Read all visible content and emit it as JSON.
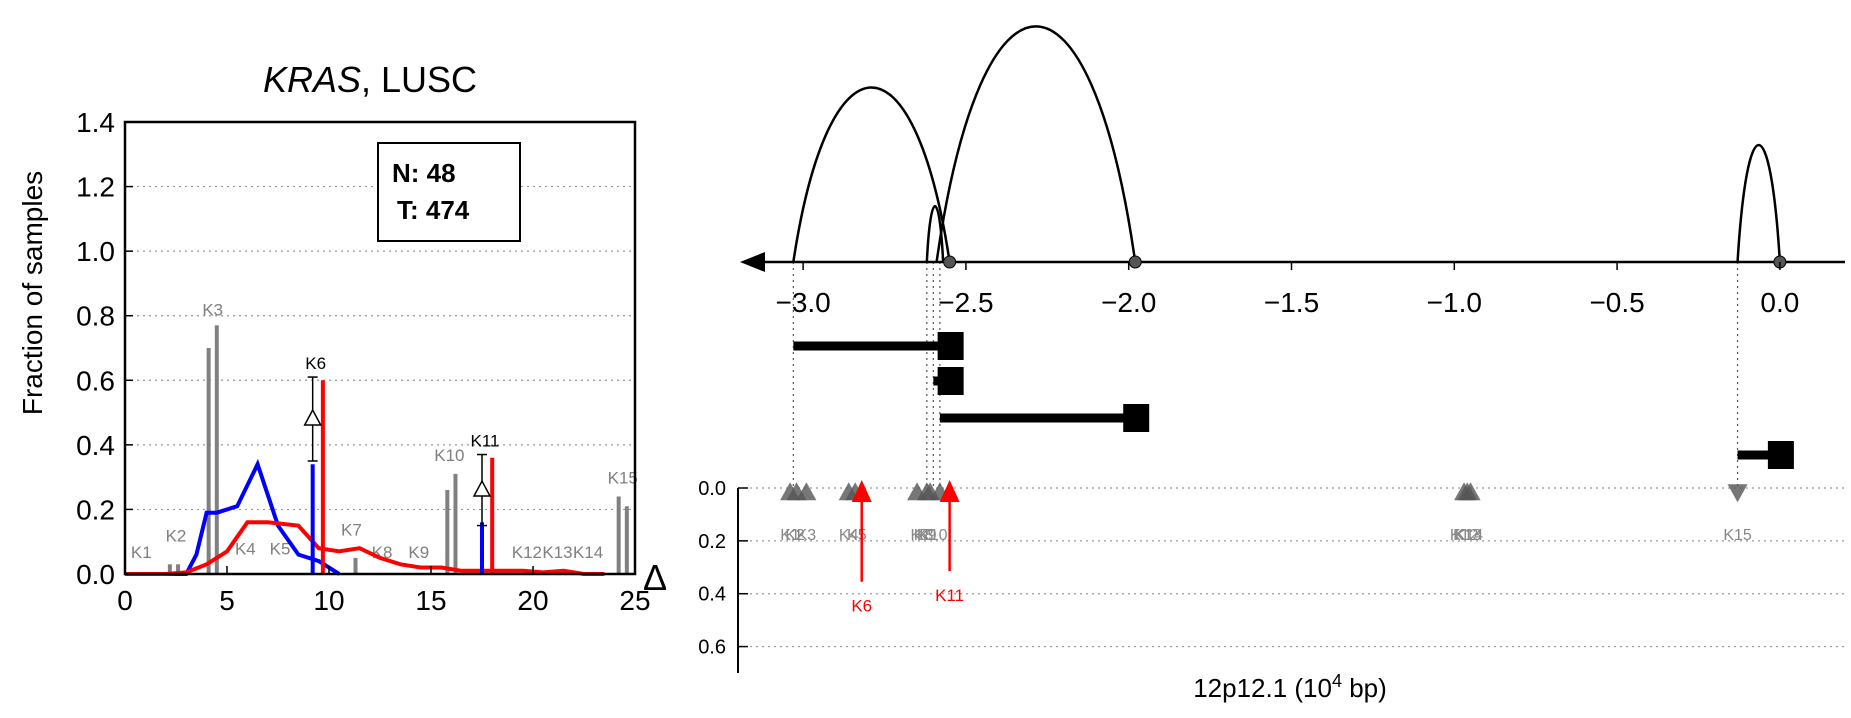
{
  "chart_data": [
    {
      "type": "line",
      "title_italic": "KRAS",
      "title_rest": ", LUSC",
      "ylabel": "Fraction of samples",
      "xlim": [
        0,
        25
      ],
      "ylim": [
        0,
        1.4
      ],
      "xticks": [
        "0",
        "5",
        "10",
        "15",
        "20",
        "25"
      ],
      "yticks": [
        "0.0",
        "0.2",
        "0.4",
        "0.6",
        "0.8",
        "1.0",
        "1.2",
        "1.4"
      ],
      "grid": "horizontal dotted",
      "legend": {
        "N": "N: 48",
        "T": "T: 474"
      },
      "colors": {
        "normal": "#0000ff",
        "tumor": "#ff0000",
        "marker": "#808080"
      },
      "series": [
        {
          "color": "#0000ff",
          "x": [
            0,
            1,
            2,
            3,
            3.5,
            4,
            4.5,
            5.5,
            6.5,
            7.5,
            8.5,
            9.5,
            10.5
          ],
          "values": [
            0,
            0,
            0,
            0,
            0.06,
            0.19,
            0.19,
            0.21,
            0.34,
            0.15,
            0.06,
            0.04,
            0
          ]
        },
        {
          "color": "#ff0000",
          "x": [
            0,
            1,
            2,
            3,
            4,
            5,
            6,
            7,
            8.5,
            9.5,
            10.5,
            11.5,
            12.5,
            13.5,
            14.5,
            15.5,
            16.5,
            17.5,
            18.5,
            19.5,
            20.5,
            21.5,
            22.5,
            23.5
          ],
          "values": [
            0,
            0,
            0,
            0.005,
            0.03,
            0.07,
            0.16,
            0.16,
            0.15,
            0.08,
            0.07,
            0.08,
            0.05,
            0.03,
            0.02,
            0.02,
            0.01,
            0.01,
            0.01,
            0.01,
            0.005,
            0.01,
            0,
            0
          ]
        }
      ],
      "kmer_bars": [
        {
          "label": "K1",
          "label_y": 0.05,
          "bars": []
        },
        {
          "label": "K2",
          "label_y": 0.1,
          "bars": [
            [
              2.2,
              0.03
            ],
            [
              2.6,
              0.03
            ]
          ]
        },
        {
          "label": "K3",
          "label_y": 0.8,
          "bars": [
            [
              4.1,
              0.7
            ],
            [
              4.5,
              0.77
            ]
          ]
        },
        {
          "label": "K4",
          "label_y": 0.06,
          "bars": []
        },
        {
          "label": "K5",
          "label_y": 0.06,
          "bars": []
        },
        {
          "label": "K7",
          "label_y": 0.12,
          "bars": [
            [
              11.3,
              0.05
            ]
          ]
        },
        {
          "label": "K8",
          "label_y": 0.05,
          "bars": []
        },
        {
          "label": "K9",
          "label_y": 0.05,
          "bars": []
        },
        {
          "label": "K10",
          "label_y": 0.35,
          "bars": [
            [
              15.8,
              0.26
            ],
            [
              16.2,
              0.31
            ]
          ]
        },
        {
          "label": "K12",
          "label_y": 0.05,
          "bars": []
        },
        {
          "label": "K13",
          "label_y": 0.05,
          "bars": []
        },
        {
          "label": "K14",
          "label_y": 0.05,
          "bars": []
        },
        {
          "label": "K15",
          "label_y": 0.28,
          "bars": [
            [
              24.2,
              0.24
            ],
            [
              24.6,
              0.21
            ]
          ]
        }
      ],
      "highlighted": [
        {
          "label": "K6",
          "x": 9.2,
          "normal": 0.34,
          "tumor": 0.6,
          "delta": 0.48,
          "err_low": 0.35,
          "err_high": 0.61
        },
        {
          "label": "K11",
          "x": 17.5,
          "normal": 0.16,
          "tumor": 0.36,
          "delta": 0.26,
          "err_low": 0.15,
          "err_high": 0.37
        }
      ]
    },
    {
      "type": "genomic-track",
      "xlabel_main": "12p12.1 (10",
      "xlabel_exp": "4",
      "xlabel_end": " bp)",
      "delta_label": "Δ",
      "xlim": [
        -3.2,
        0.2
      ],
      "xticks": [
        "−3.0",
        "−2.5",
        "−2.0",
        "−1.5",
        "−1.0",
        "−0.5",
        "0.0"
      ],
      "delta_ticks": [
        "0.0",
        "0.2",
        "0.4",
        "0.6"
      ],
      "delta_lim": [
        0,
        0.7
      ],
      "grid": "horizontal dotted",
      "colors": {
        "arc": "#000000",
        "marker": "#555555",
        "highlight": "#ff0000"
      },
      "arcs": [
        {
          "start": -3.03,
          "end": -2.55,
          "height": 1.0
        },
        {
          "start": -2.59,
          "end": -1.98,
          "height": 1.35
        },
        {
          "start": -2.62,
          "end": -2.57,
          "height": 0.32
        },
        {
          "start": -0.13,
          "end": 0.0,
          "height": 0.67
        }
      ],
      "arc_endpoints": [
        -2.55,
        -1.98,
        0.0
      ],
      "transcripts": [
        {
          "start": -3.03,
          "end": -2.55,
          "row": 0
        },
        {
          "start": -2.6,
          "end": -2.55,
          "row": 1
        },
        {
          "start": -2.58,
          "end": -1.98,
          "row": 2
        },
        {
          "start": -0.13,
          "end": 0.0,
          "row": 3
        }
      ],
      "guides": [
        -3.03,
        -2.62,
        -2.6,
        -2.58,
        -0.13
      ],
      "kmers": [
        {
          "label": "K1",
          "x": -3.04,
          "delta": 0.02,
          "dir": "up"
        },
        {
          "label": "K2",
          "x": -3.02,
          "delta": 0.02,
          "dir": "up"
        },
        {
          "label": "K3",
          "x": -2.99,
          "delta": 0.02,
          "dir": "up"
        },
        {
          "label": "K4",
          "x": -2.86,
          "delta": 0.02,
          "dir": "up"
        },
        {
          "label": "K5",
          "x": -2.84,
          "delta": 0.02,
          "dir": "up"
        },
        {
          "label": "K7",
          "x": -2.65,
          "delta": 0.02,
          "dir": "up"
        },
        {
          "label": "K8",
          "x": -2.62,
          "delta": 0.02,
          "dir": "up"
        },
        {
          "label": "K9",
          "x": -2.61,
          "delta": 0.02,
          "dir": "up"
        },
        {
          "label": "K10",
          "x": -2.58,
          "delta": 0.02,
          "dir": "up"
        },
        {
          "label": "K12",
          "x": -0.97,
          "delta": 0.02,
          "dir": "up"
        },
        {
          "label": "K13",
          "x": -0.96,
          "delta": 0.02,
          "dir": "up"
        },
        {
          "label": "K14",
          "x": -0.95,
          "delta": 0.02,
          "dir": "up"
        },
        {
          "label": "K15",
          "x": -0.13,
          "delta": 0.02,
          "dir": "down"
        }
      ],
      "highlighted": [
        {
          "label": "K6",
          "x": -2.82,
          "delta": 0.26
        },
        {
          "label": "K11",
          "x": -2.55,
          "delta": 0.22
        }
      ]
    }
  ]
}
